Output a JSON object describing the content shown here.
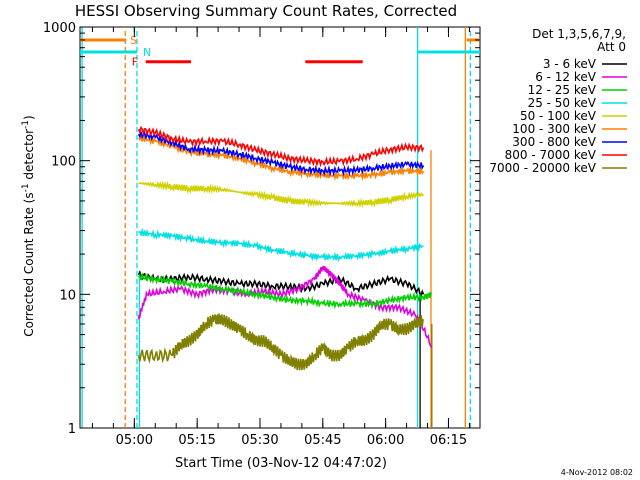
{
  "chart_data": {
    "type": "line",
    "title": "HESSI Observing Summary Count Rates, Corrected",
    "xlabel": "Start Time (03-Nov-12 04:47:02)",
    "ylabel_main": "Corrected Count Rate (s",
    "ylabel_sup1": "-1",
    "ylabel_mid": " detector",
    "ylabel_sup2": "-1",
    "ylabel_end": ")",
    "yscale": "log",
    "ylim": [
      1,
      1000
    ],
    "xlim_minutes": [
      0,
      95.5
    ],
    "x_ticks": [
      {
        "minute": 12.97,
        "label": "05:00"
      },
      {
        "minute": 27.97,
        "label": "05:15"
      },
      {
        "minute": 42.97,
        "label": "05:30"
      },
      {
        "minute": 57.97,
        "label": "05:45"
      },
      {
        "minute": 72.97,
        "label": "06:00"
      },
      {
        "minute": 87.97,
        "label": "06:15"
      }
    ],
    "y_ticks": [
      {
        "value": 1,
        "label": "1"
      },
      {
        "value": 10,
        "label": "10"
      },
      {
        "value": 100,
        "label": "100"
      },
      {
        "value": 1000,
        "label": "1000"
      }
    ],
    "legend_header": [
      "Det 1,3,5,6,7,9,",
      "Att 0"
    ],
    "legend_placement": "right",
    "timestamp": "4-Nov-2012 08:02",
    "flag_labels": {
      "S": "S",
      "N": "N",
      "F": "F"
    },
    "series": [
      {
        "name": "3 - 6 keV",
        "color": "#000000",
        "x": [
          14,
          18,
          22,
          26,
          30,
          34,
          38,
          42,
          46,
          50,
          54,
          58,
          62,
          66,
          70,
          74,
          78,
          82
        ],
        "values": [
          14,
          13,
          13,
          13.5,
          13,
          12.5,
          12,
          12,
          11.5,
          11.5,
          11,
          12,
          13,
          11,
          12,
          13,
          12,
          10
        ]
      },
      {
        "name": "6 - 12 keV",
        "color": "#e000e0",
        "x": [
          14,
          16,
          20,
          24,
          28,
          32,
          36,
          40,
          44,
          48,
          52,
          56,
          58,
          60,
          62,
          64,
          68,
          72,
          76,
          80,
          84
        ],
        "values": [
          6.5,
          10,
          10.5,
          11,
          10,
          11,
          10.5,
          10,
          10.5,
          10,
          11,
          13,
          16,
          14,
          12,
          10,
          9,
          8,
          8,
          7,
          4
        ]
      },
      {
        "name": "12 - 25 keV",
        "color": "#00d000",
        "x": [
          14,
          18,
          22,
          26,
          30,
          34,
          38,
          42,
          46,
          50,
          54,
          58,
          62,
          66,
          70,
          74,
          78,
          82,
          84
        ],
        "values": [
          13.5,
          13,
          12.5,
          12,
          11.5,
          11,
          10.5,
          10,
          9.5,
          9,
          9,
          8.5,
          8.5,
          8.5,
          8.5,
          9,
          9.5,
          9.5,
          10
        ]
      },
      {
        "name": "25 - 50 keV",
        "color": "#00e0e0",
        "x": [
          14,
          18,
          22,
          26,
          30,
          34,
          38,
          42,
          46,
          50,
          54,
          58,
          62,
          66,
          70,
          74,
          78,
          82
        ],
        "values": [
          29,
          28,
          27.5,
          26,
          25,
          24.5,
          24,
          23,
          21.5,
          20.5,
          19.5,
          19,
          19,
          19.5,
          20,
          21,
          22,
          23
        ]
      },
      {
        "name": "50 - 100 keV",
        "color": "#d0d000",
        "x": [
          14,
          18,
          22,
          26,
          30,
          34,
          38,
          42,
          46,
          50,
          54,
          58,
          62,
          66,
          70,
          74,
          78,
          82
        ],
        "values": [
          68,
          66,
          64,
          62,
          62,
          61,
          58,
          56,
          53,
          50,
          49,
          48,
          48,
          48,
          49,
          51,
          54,
          56
        ]
      },
      {
        "name": "100 - 300 keV",
        "color": "#ff8000",
        "x": [
          14,
          18,
          22,
          26,
          30,
          34,
          38,
          42,
          46,
          50,
          54,
          58,
          62,
          66,
          70,
          74,
          78,
          82
        ],
        "values": [
          148,
          140,
          128,
          116,
          112,
          110,
          104,
          96,
          88,
          83,
          80,
          78,
          77,
          77,
          78,
          82,
          84,
          83
        ]
      },
      {
        "name": "300 - 800 keV",
        "color": "#0000ff",
        "x": [
          14,
          18,
          22,
          26,
          30,
          34,
          38,
          42,
          46,
          50,
          54,
          58,
          62,
          66,
          70,
          74,
          78,
          82
        ],
        "values": [
          158,
          150,
          136,
          122,
          120,
          118,
          112,
          104,
          97,
          90,
          86,
          84,
          84,
          85,
          88,
          91,
          94,
          92
        ]
      },
      {
        "name": "800 - 7000 keV",
        "color": "#ff0000",
        "x": [
          14,
          18,
          22,
          26,
          30,
          34,
          38,
          42,
          46,
          50,
          54,
          58,
          62,
          66,
          70,
          74,
          78,
          82
        ],
        "values": [
          172,
          162,
          146,
          138,
          140,
          140,
          132,
          120,
          112,
          104,
          100,
          98,
          99,
          103,
          112,
          121,
          126,
          125
        ]
      },
      {
        "name": "7000 - 20000 keV",
        "color": "#808000",
        "x": [
          14,
          18,
          22,
          24,
          26,
          28,
          30,
          32,
          34,
          36,
          38,
          40,
          42,
          44,
          46,
          48,
          50,
          52,
          54,
          56,
          58,
          60,
          62,
          64,
          66,
          68,
          70,
          72,
          74,
          76,
          78,
          80,
          82
        ],
        "values": [
          3.5,
          3.5,
          3.5,
          4.2,
          4.5,
          5,
          6,
          6.5,
          6.5,
          6,
          5.5,
          5,
          4.5,
          4.5,
          4,
          3.5,
          3.2,
          3,
          3,
          3.5,
          4,
          3.5,
          3.5,
          4,
          4.5,
          4.5,
          5,
          6,
          6,
          5.5,
          5.5,
          6,
          6.5
        ]
      }
    ],
    "vertical_lines": [
      {
        "minute": 10.8,
        "color": "#ff8000",
        "style": "dashed"
      },
      {
        "minute": 13.6,
        "color": "#00e0e0",
        "style": "dashed"
      },
      {
        "minute": 14.2,
        "color": "#00e0e0",
        "style": "solid",
        "from_value": 1,
        "to_value": 15
      },
      {
        "minute": 80.6,
        "color": "#00e0e0",
        "style": "solid"
      },
      {
        "minute": 81.2,
        "color": "#000000",
        "style": "solid",
        "from_value": 1,
        "to_value": 10
      },
      {
        "minute": 83.8,
        "color": "#ff8000",
        "style": "solid",
        "from_value": 1,
        "to_value": 120
      },
      {
        "minute": 84.0,
        "color": "#808000",
        "style": "solid",
        "from_value": 1,
        "to_value": 6
      },
      {
        "minute": 92.0,
        "color": "#ff8000",
        "style": "solid"
      },
      {
        "minute": 93.2,
        "color": "#00e0e0",
        "style": "dashed"
      },
      {
        "minute": 0.5,
        "color": "#00e0e0",
        "style": "solid"
      }
    ],
    "flag_bars": [
      {
        "flag": "S",
        "color": "#ff8000",
        "value": 800,
        "x0": 0,
        "x1": 11
      },
      {
        "flag": "S",
        "color": "#ff8000",
        "value": 800,
        "x0": 92.3,
        "x1": 95.5
      },
      {
        "flag": "N",
        "color": "#00e0e0",
        "value": 650,
        "x0": 0,
        "x1": 13.6
      },
      {
        "flag": "N",
        "color": "#00e0e0",
        "value": 650,
        "x0": 80.6,
        "x1": 95.5
      },
      {
        "flag": "F",
        "color": "#ff0000",
        "value": 550,
        "x0": 15.7,
        "x1": 26.5
      },
      {
        "flag": "F",
        "color": "#ff0000",
        "value": 550,
        "x0": 53.8,
        "x1": 67.5
      }
    ]
  }
}
